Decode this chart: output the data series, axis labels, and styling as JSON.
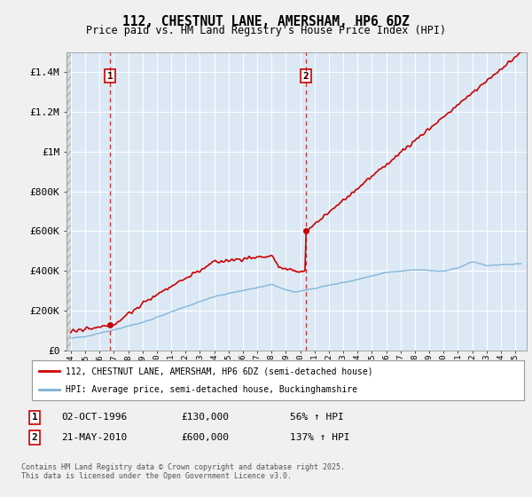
{
  "title": "112, CHESTNUT LANE, AMERSHAM, HP6 6DZ",
  "subtitle": "Price paid vs. HM Land Registry's House Price Index (HPI)",
  "legend_line1": "112, CHESTNUT LANE, AMERSHAM, HP6 6DZ (semi-detached house)",
  "legend_line2": "HPI: Average price, semi-detached house, Buckinghamshire",
  "footnote": "Contains HM Land Registry data © Crown copyright and database right 2025.\nThis data is licensed under the Open Government Licence v3.0.",
  "transaction1_label": "1",
  "transaction1_date": "02-OCT-1996",
  "transaction1_price": "£130,000",
  "transaction1_hpi": "56% ↑ HPI",
  "transaction1_x": 1996.75,
  "transaction1_y": 130000,
  "transaction2_label": "2",
  "transaction2_date": "21-MAY-2010",
  "transaction2_price": "£600,000",
  "transaction2_hpi": "137% ↑ HPI",
  "transaction2_x": 2010.38,
  "transaction2_y": 600000,
  "price_color": "#cc0000",
  "hpi_color": "#7ab0d4",
  "dashed_line_color": "#cc0000",
  "ylim": [
    0,
    1500000
  ],
  "yticks": [
    0,
    200000,
    400000,
    600000,
    800000,
    1000000,
    1200000,
    1400000
  ],
  "ytick_labels": [
    "£0",
    "£200K",
    "£400K",
    "£600K",
    "£800K",
    "£1M",
    "£1.2M",
    "£1.4M"
  ],
  "xlim_start": 1993.7,
  "xlim_end": 2025.8,
  "background_color": "#f0f0f0",
  "plot_bg_color": "#dce9f5",
  "hatch_bg_color": "#e8e8e8",
  "grid_color": "#ffffff"
}
